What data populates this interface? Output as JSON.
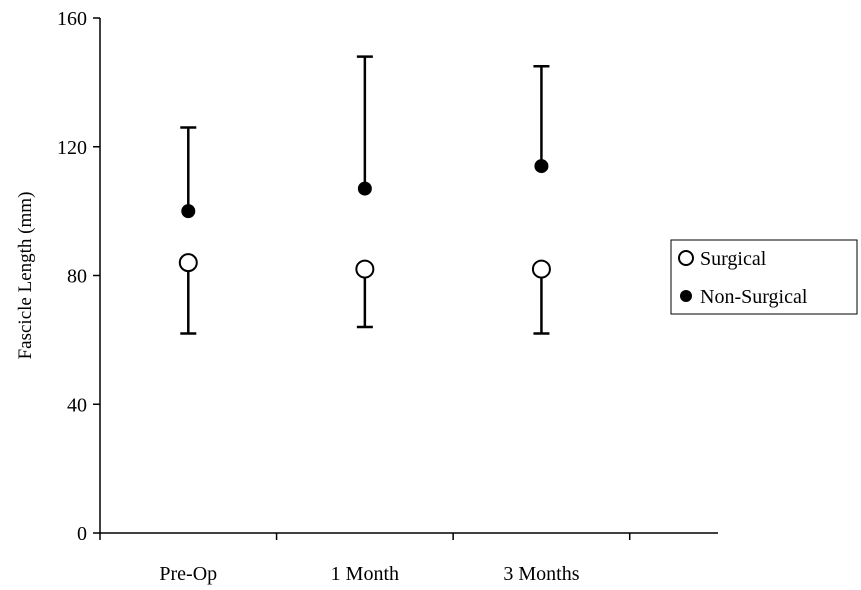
{
  "chart_data": {
    "type": "scatter",
    "title": "",
    "xlabel": "",
    "ylabel": "Fascicle Length (mm)",
    "categories": [
      "Pre-Op",
      "1 Month",
      "3 Months"
    ],
    "ylim": [
      0,
      160
    ],
    "yticks": [
      0,
      40,
      80,
      120,
      160
    ],
    "grid": false,
    "legend_placement": "right",
    "series": [
      {
        "name": "Surgical",
        "marker": "open-circle",
        "color": "#000000",
        "values": [
          84,
          82,
          82
        ],
        "error_low": [
          62,
          64,
          62
        ]
      },
      {
        "name": "Non-Surgical",
        "marker": "filled-circle",
        "color": "#000000",
        "values": [
          100,
          107,
          114
        ],
        "error_high": [
          126,
          148,
          145
        ]
      }
    ]
  }
}
